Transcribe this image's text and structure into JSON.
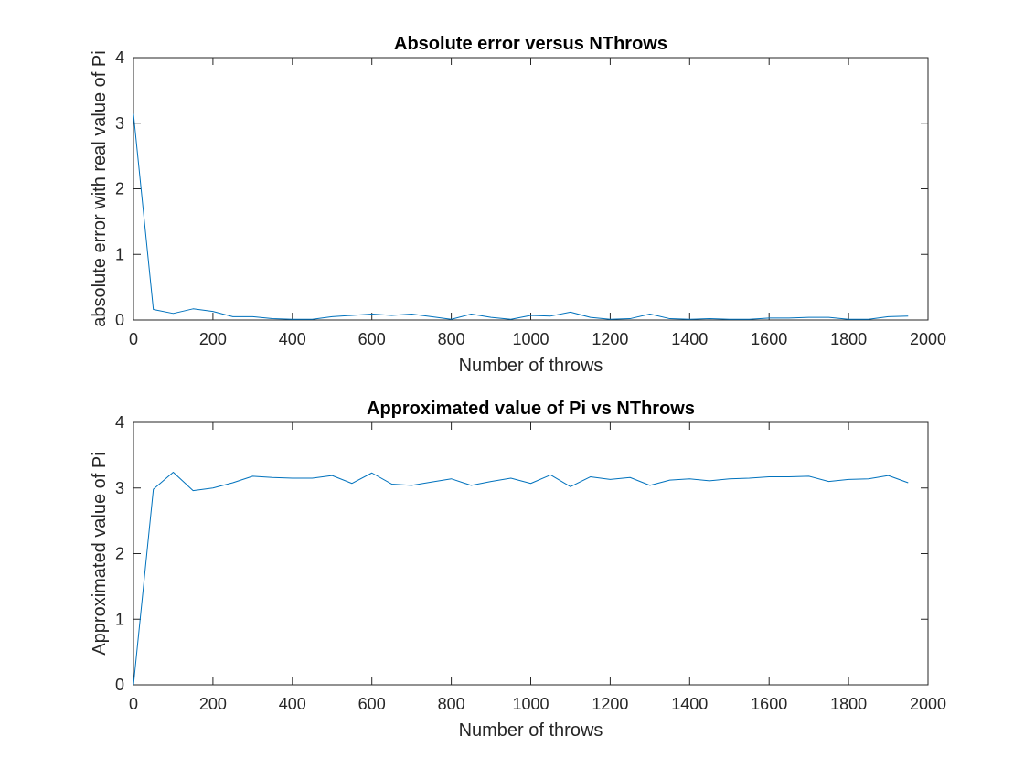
{
  "chart_data": [
    {
      "type": "line",
      "title": "Absolute error versus NThrows",
      "xlabel": "Number of throws",
      "ylabel": "absolute error with real value of Pi",
      "xlim": [
        0,
        2000
      ],
      "ylim": [
        0,
        4
      ],
      "xticks": [
        0,
        200,
        400,
        600,
        800,
        1000,
        1200,
        1400,
        1600,
        1800,
        2000
      ],
      "yticks": [
        0,
        1,
        2,
        3,
        4
      ],
      "grid": false,
      "legend": "none",
      "x": [
        0,
        50,
        100,
        150,
        200,
        250,
        300,
        350,
        400,
        450,
        500,
        550,
        600,
        650,
        700,
        750,
        800,
        850,
        900,
        950,
        1000,
        1050,
        1100,
        1150,
        1200,
        1250,
        1300,
        1350,
        1400,
        1450,
        1500,
        1550,
        1600,
        1650,
        1700,
        1750,
        1800,
        1850,
        1900,
        1950
      ],
      "series": [
        {
          "color": "#0072bd",
          "values": [
            3.14,
            0.16,
            0.1,
            0.17,
            0.13,
            0.05,
            0.05,
            0.02,
            0.01,
            0.01,
            0.05,
            0.07,
            0.09,
            0.07,
            0.09,
            0.05,
            0.01,
            0.09,
            0.04,
            0.01,
            0.07,
            0.06,
            0.12,
            0.04,
            0.01,
            0.02,
            0.09,
            0.02,
            0.01,
            0.02,
            0.01,
            0.01,
            0.03,
            0.03,
            0.04,
            0.04,
            0.01,
            0.01,
            0.05,
            0.06
          ]
        }
      ]
    },
    {
      "type": "line",
      "title": "Approximated value of Pi vs NThrows",
      "xlabel": "Number of throws",
      "ylabel": "Approximated value of Pi",
      "xlim": [
        0,
        2000
      ],
      "ylim": [
        0,
        4
      ],
      "xticks": [
        0,
        200,
        400,
        600,
        800,
        1000,
        1200,
        1400,
        1600,
        1800,
        2000
      ],
      "yticks": [
        0,
        1,
        2,
        3,
        4
      ],
      "grid": false,
      "legend": "none",
      "x": [
        0,
        50,
        100,
        150,
        200,
        250,
        300,
        350,
        400,
        450,
        500,
        550,
        600,
        650,
        700,
        750,
        800,
        850,
        900,
        950,
        1000,
        1050,
        1100,
        1150,
        1200,
        1250,
        1300,
        1350,
        1400,
        1450,
        1500,
        1550,
        1600,
        1650,
        1700,
        1750,
        1800,
        1850,
        1900,
        1950
      ],
      "series": [
        {
          "color": "#0072bd",
          "values": [
            0,
            2.98,
            3.24,
            2.96,
            3.0,
            3.08,
            3.18,
            3.16,
            3.15,
            3.15,
            3.19,
            3.07,
            3.23,
            3.06,
            3.04,
            3.09,
            3.14,
            3.04,
            3.1,
            3.15,
            3.07,
            3.2,
            3.02,
            3.17,
            3.13,
            3.16,
            3.04,
            3.12,
            3.14,
            3.11,
            3.14,
            3.15,
            3.17,
            3.17,
            3.18,
            3.1,
            3.13,
            3.14,
            3.19,
            3.08
          ]
        }
      ]
    }
  ]
}
